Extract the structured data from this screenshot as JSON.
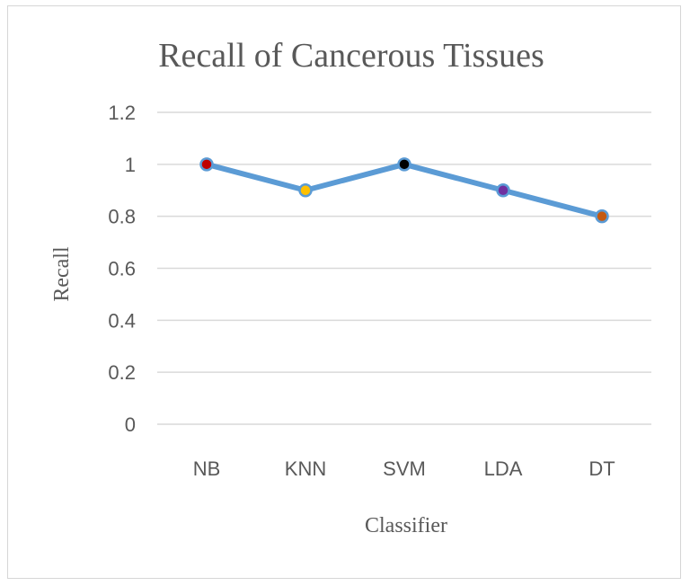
{
  "chart_data": {
    "type": "line",
    "title": "Recall of Cancerous Tissues",
    "xlabel": "Classifier",
    "ylabel": "Recall",
    "categories": [
      "NB",
      "KNN",
      "SVM",
      "LDA",
      "DT"
    ],
    "series": [
      {
        "values": [
          1.0,
          0.9,
          1.0,
          0.9,
          0.8
        ],
        "color": "#5b9bd5",
        "point_colors": [
          "#c00000",
          "#ffc000",
          "#000000",
          "#7030a0",
          "#c55a11"
        ]
      }
    ],
    "ylim": [
      0,
      1.2
    ],
    "yticks": [
      0,
      0.2,
      0.4,
      0.6,
      0.8,
      1,
      1.2
    ],
    "ytick_labels": [
      "0",
      "0.2",
      "0.4",
      "0.6",
      "0.8",
      "1",
      "1.2"
    ],
    "grid": true,
    "legend": "none"
  }
}
